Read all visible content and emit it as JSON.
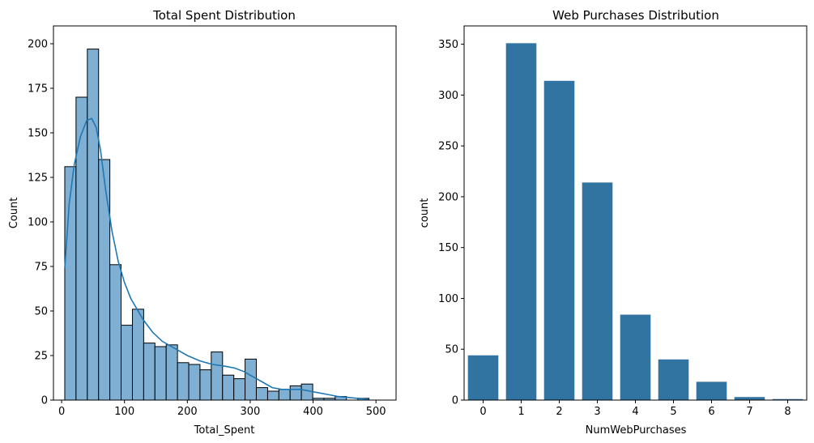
{
  "chart_data": [
    {
      "type": "bar",
      "title": "Total Spent Distribution",
      "xlabel": "Total_Spent",
      "ylabel": "Count",
      "xlim": [
        -13,
        532
      ],
      "ylim": [
        0,
        210
      ],
      "xticks": [
        0,
        100,
        200,
        300,
        400,
        500
      ],
      "yticks": [
        0,
        25,
        50,
        75,
        100,
        125,
        150,
        175,
        200
      ],
      "grid": false,
      "bins": [
        {
          "x0": 5,
          "x1": 22.9,
          "count": 131
        },
        {
          "x0": 22.9,
          "x1": 40.9,
          "count": 170
        },
        {
          "x0": 40.9,
          "x1": 58.8,
          "count": 197
        },
        {
          "x0": 58.8,
          "x1": 76.7,
          "count": 135
        },
        {
          "x0": 76.7,
          "x1": 94.6,
          "count": 76
        },
        {
          "x0": 94.6,
          "x1": 112.6,
          "count": 42
        },
        {
          "x0": 112.6,
          "x1": 130.5,
          "count": 51
        },
        {
          "x0": 130.5,
          "x1": 148.4,
          "count": 32
        },
        {
          "x0": 148.4,
          "x1": 166.3,
          "count": 30
        },
        {
          "x0": 166.3,
          "x1": 184.3,
          "count": 31
        },
        {
          "x0": 184.3,
          "x1": 202.2,
          "count": 21
        },
        {
          "x0": 202.2,
          "x1": 220.1,
          "count": 20
        },
        {
          "x0": 220.1,
          "x1": 238.0,
          "count": 17
        },
        {
          "x0": 238.0,
          "x1": 256.0,
          "count": 27
        },
        {
          "x0": 256.0,
          "x1": 273.9,
          "count": 14
        },
        {
          "x0": 273.9,
          "x1": 291.8,
          "count": 12
        },
        {
          "x0": 291.8,
          "x1": 309.7,
          "count": 23
        },
        {
          "x0": 309.7,
          "x1": 327.7,
          "count": 7
        },
        {
          "x0": 327.7,
          "x1": 345.6,
          "count": 5
        },
        {
          "x0": 345.6,
          "x1": 363.5,
          "count": 6
        },
        {
          "x0": 363.5,
          "x1": 381.4,
          "count": 8
        },
        {
          "x0": 381.4,
          "x1": 399.4,
          "count": 9
        },
        {
          "x0": 399.4,
          "x1": 417.3,
          "count": 1
        },
        {
          "x0": 417.3,
          "x1": 435.2,
          "count": 1
        },
        {
          "x0": 435.2,
          "x1": 453.1,
          "count": 2
        },
        {
          "x0": 453.1,
          "x1": 471.1,
          "count": 0
        },
        {
          "x0": 471.1,
          "x1": 489.0,
          "count": 1
        }
      ],
      "kde": {
        "x": [
          5,
          12,
          20,
          30,
          40,
          48,
          55,
          62,
          70,
          80,
          90,
          100,
          110,
          120,
          130,
          145,
          160,
          180,
          200,
          220,
          240,
          260,
          275,
          290,
          305,
          320,
          335,
          350,
          365,
          380,
          395,
          410,
          425,
          440,
          455,
          470,
          489
        ],
        "y": [
          74,
          110,
          132,
          148,
          157,
          158,
          153,
          140,
          118,
          95,
          78,
          66,
          57,
          51,
          45,
          38,
          33,
          29,
          25,
          22,
          20,
          19,
          18,
          16,
          13,
          10,
          7,
          6,
          6,
          6,
          5,
          4,
          3,
          2,
          1.5,
          1,
          0.5
        ]
      },
      "colors": {
        "bar": "#7fb0d3",
        "edge": "#000000",
        "kde": "#1f77b4"
      }
    },
    {
      "type": "bar",
      "title": "Web Purchases Distribution",
      "xlabel": "NumWebPurchases",
      "ylabel": "count",
      "categories": [
        "0",
        "1",
        "2",
        "3",
        "4",
        "5",
        "6",
        "7",
        "8"
      ],
      "values": [
        44,
        351,
        314,
        214,
        84,
        40,
        18,
        3,
        1
      ],
      "ylim": [
        0,
        368
      ],
      "yticks": [
        0,
        50,
        100,
        150,
        200,
        250,
        300,
        350
      ],
      "grid": false,
      "colors": {
        "bar": "#3274a1"
      }
    }
  ]
}
